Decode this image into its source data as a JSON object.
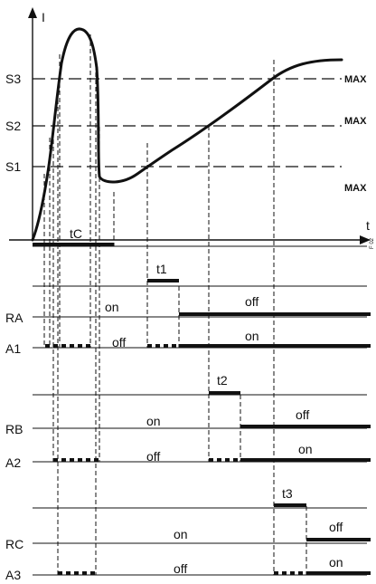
{
  "axes": {
    "y_label": "I",
    "x_label": "t",
    "figure_code": "F 02"
  },
  "levels": [
    {
      "name": "S3",
      "max_label": "MAX"
    },
    {
      "name": "S2",
      "max_label": "MAX"
    },
    {
      "name": "S1",
      "max_label": "MAX"
    }
  ],
  "timers": {
    "tC": "tC",
    "t1": "t1",
    "t2": "t2",
    "t3": "t3"
  },
  "rows": {
    "RA": {
      "label": "RA",
      "before": "on",
      "after": "off"
    },
    "A1": {
      "label": "A1",
      "before": "off",
      "after": "on"
    },
    "RB": {
      "label": "RB",
      "before": "on",
      "after": "off"
    },
    "A2": {
      "label": "A2",
      "before": "off",
      "after": "on"
    },
    "RC": {
      "label": "RC",
      "before": "on",
      "after": "off"
    },
    "A3": {
      "label": "A3",
      "before": "off",
      "after": "on"
    }
  },
  "colors": {
    "ink": "#111111",
    "background": "#ffffff"
  }
}
